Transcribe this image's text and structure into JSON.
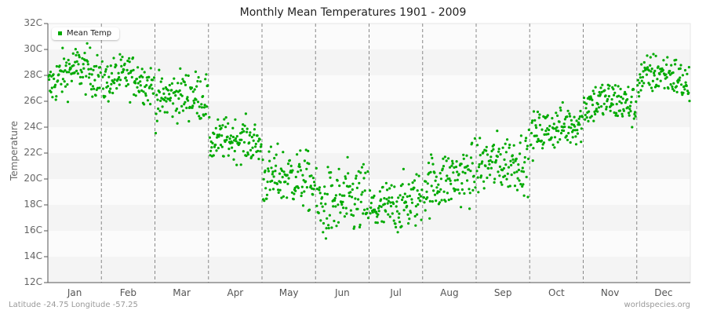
{
  "chart_data": {
    "type": "scatter",
    "title": "Monthly Mean Temperatures 1901 - 2009",
    "xlabel": "",
    "ylabel": "Temperature",
    "ylim": [
      12,
      32
    ],
    "yticks": [
      "12C",
      "14C",
      "16C",
      "18C",
      "20C",
      "22C",
      "24C",
      "26C",
      "28C",
      "30C",
      "32C"
    ],
    "categories": [
      "Jan",
      "Feb",
      "Mar",
      "Apr",
      "May",
      "Jun",
      "Jul",
      "Aug",
      "Sep",
      "Oct",
      "Nov",
      "Dec"
    ],
    "legend": {
      "label": "Mean Temp",
      "position": "top-left"
    },
    "grid": {
      "horizontal_bands": true,
      "vertical_dashed_month_separators": true
    },
    "series": [
      {
        "name": "Mean Temp",
        "color": "#00aa00",
        "points_per_month": 109,
        "monthly_summary": [
          {
            "month": "Jan",
            "start_mean": 27.0,
            "end_mean": 27.8,
            "peak": 28.8,
            "min": 24.6,
            "max": 30.8
          },
          {
            "month": "Feb",
            "start_mean": 27.3,
            "end_mean": 27.0,
            "peak": 28.2,
            "min": 24.3,
            "max": 29.9
          },
          {
            "month": "Mar",
            "start_mean": 26.0,
            "end_mean": 26.2,
            "peak": 26.6,
            "min": 22.6,
            "max": 29.1
          },
          {
            "month": "Apr",
            "start_mean": 22.8,
            "end_mean": 22.6,
            "peak": 23.2,
            "min": 19.8,
            "max": 25.3
          },
          {
            "month": "May",
            "start_mean": 20.0,
            "end_mean": 19.6,
            "peak": 20.3,
            "min": 15.6,
            "max": 23.2
          },
          {
            "month": "Jun",
            "start_mean": 17.8,
            "end_mean": 18.4,
            "peak": 18.2,
            "min": 13.6,
            "max": 23.2
          },
          {
            "month": "Jul",
            "start_mean": 17.5,
            "end_mean": 18.6,
            "peak": 17.9,
            "min": 14.0,
            "max": 21.3
          },
          {
            "month": "Aug",
            "start_mean": 19.5,
            "end_mean": 20.5,
            "peak": 20.0,
            "min": 16.3,
            "max": 24.2
          },
          {
            "month": "Sep",
            "start_mean": 21.0,
            "end_mean": 21.4,
            "peak": 21.3,
            "min": 17.6,
            "max": 25.3
          },
          {
            "month": "Oct",
            "start_mean": 23.4,
            "end_mean": 24.4,
            "peak": 24.0,
            "min": 21.4,
            "max": 27.0
          },
          {
            "month": "Nov",
            "start_mean": 25.6,
            "end_mean": 25.5,
            "peak": 26.2,
            "min": 23.0,
            "max": 28.6
          },
          {
            "month": "Dec",
            "start_mean": 27.6,
            "end_mean": 27.1,
            "peak": 28.4,
            "min": 25.5,
            "max": 31.0
          }
        ]
      }
    ]
  },
  "footer": {
    "location": "Latitude -24.75 Longitude -57.25",
    "source": "worldspecies.org"
  },
  "colors": {
    "point": "#00aa00",
    "band_dark": "#f4f4f4",
    "band_light": "#fbfbfb",
    "axis": "#555555",
    "separator": "#888888"
  }
}
